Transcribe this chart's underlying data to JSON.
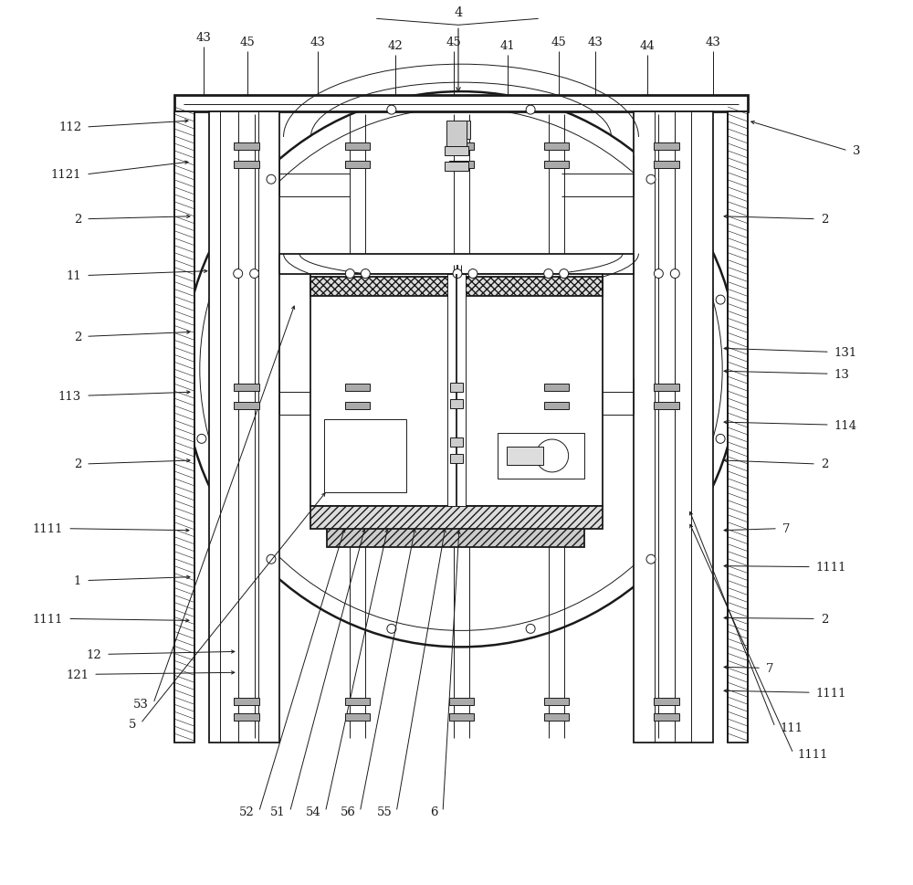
{
  "bg": "#ffffff",
  "lc": "#1a1a1a",
  "lw": 1.3,
  "lt": 0.7,
  "lT": 2.0,
  "fs": 9.5,
  "top_labels": [
    [
      "43",
      222,
      930
    ],
    [
      "45",
      270,
      925
    ],
    [
      "43",
      348,
      925
    ],
    [
      "42",
      433,
      921
    ],
    [
      "45",
      497,
      925
    ],
    [
      "41",
      556,
      921
    ],
    [
      "45",
      612,
      925
    ],
    [
      "43",
      652,
      925
    ],
    [
      "44",
      710,
      921
    ],
    [
      "43",
      782,
      925
    ]
  ],
  "left_anno": [
    [
      "112",
      88,
      831,
      209,
      838
    ],
    [
      "1121",
      88,
      779,
      209,
      793
    ],
    [
      "11",
      88,
      668,
      230,
      673
    ],
    [
      "2",
      88,
      730,
      211,
      733
    ],
    [
      "2",
      88,
      601,
      211,
      606
    ],
    [
      "113",
      88,
      536,
      211,
      540
    ],
    [
      "2",
      88,
      461,
      211,
      465
    ],
    [
      "1111",
      68,
      390,
      210,
      388
    ],
    [
      "1",
      88,
      333,
      211,
      337
    ],
    [
      "1111",
      68,
      291,
      210,
      289
    ],
    [
      "12",
      110,
      252,
      260,
      255
    ],
    [
      "121",
      96,
      230,
      260,
      232
    ],
    [
      "53",
      162,
      198,
      323,
      638
    ],
    [
      "5",
      148,
      176,
      358,
      432
    ],
    [
      "52",
      278,
      79,
      378,
      393
    ],
    [
      "51",
      312,
      79,
      400,
      393
    ],
    [
      "54",
      351,
      79,
      425,
      393
    ],
    [
      "56",
      389,
      79,
      455,
      393
    ],
    [
      "55",
      429,
      79,
      488,
      393
    ],
    [
      "6",
      480,
      79,
      503,
      391
    ]
  ],
  "right_anno": [
    [
      "3",
      935,
      805,
      820,
      838
    ],
    [
      "2",
      900,
      730,
      790,
      733
    ],
    [
      "131",
      915,
      584,
      790,
      588
    ],
    [
      "13",
      915,
      560,
      790,
      563
    ],
    [
      "114",
      915,
      504,
      790,
      507
    ],
    [
      "2",
      900,
      461,
      790,
      465
    ],
    [
      "7",
      858,
      390,
      790,
      388
    ],
    [
      "1111",
      895,
      348,
      790,
      349
    ],
    [
      "2",
      900,
      291,
      790,
      292
    ],
    [
      "7",
      840,
      237,
      790,
      238
    ],
    [
      "1111",
      895,
      210,
      790,
      212
    ],
    [
      "111",
      855,
      172,
      755,
      412
    ],
    [
      "1111",
      875,
      143,
      755,
      398
    ]
  ]
}
